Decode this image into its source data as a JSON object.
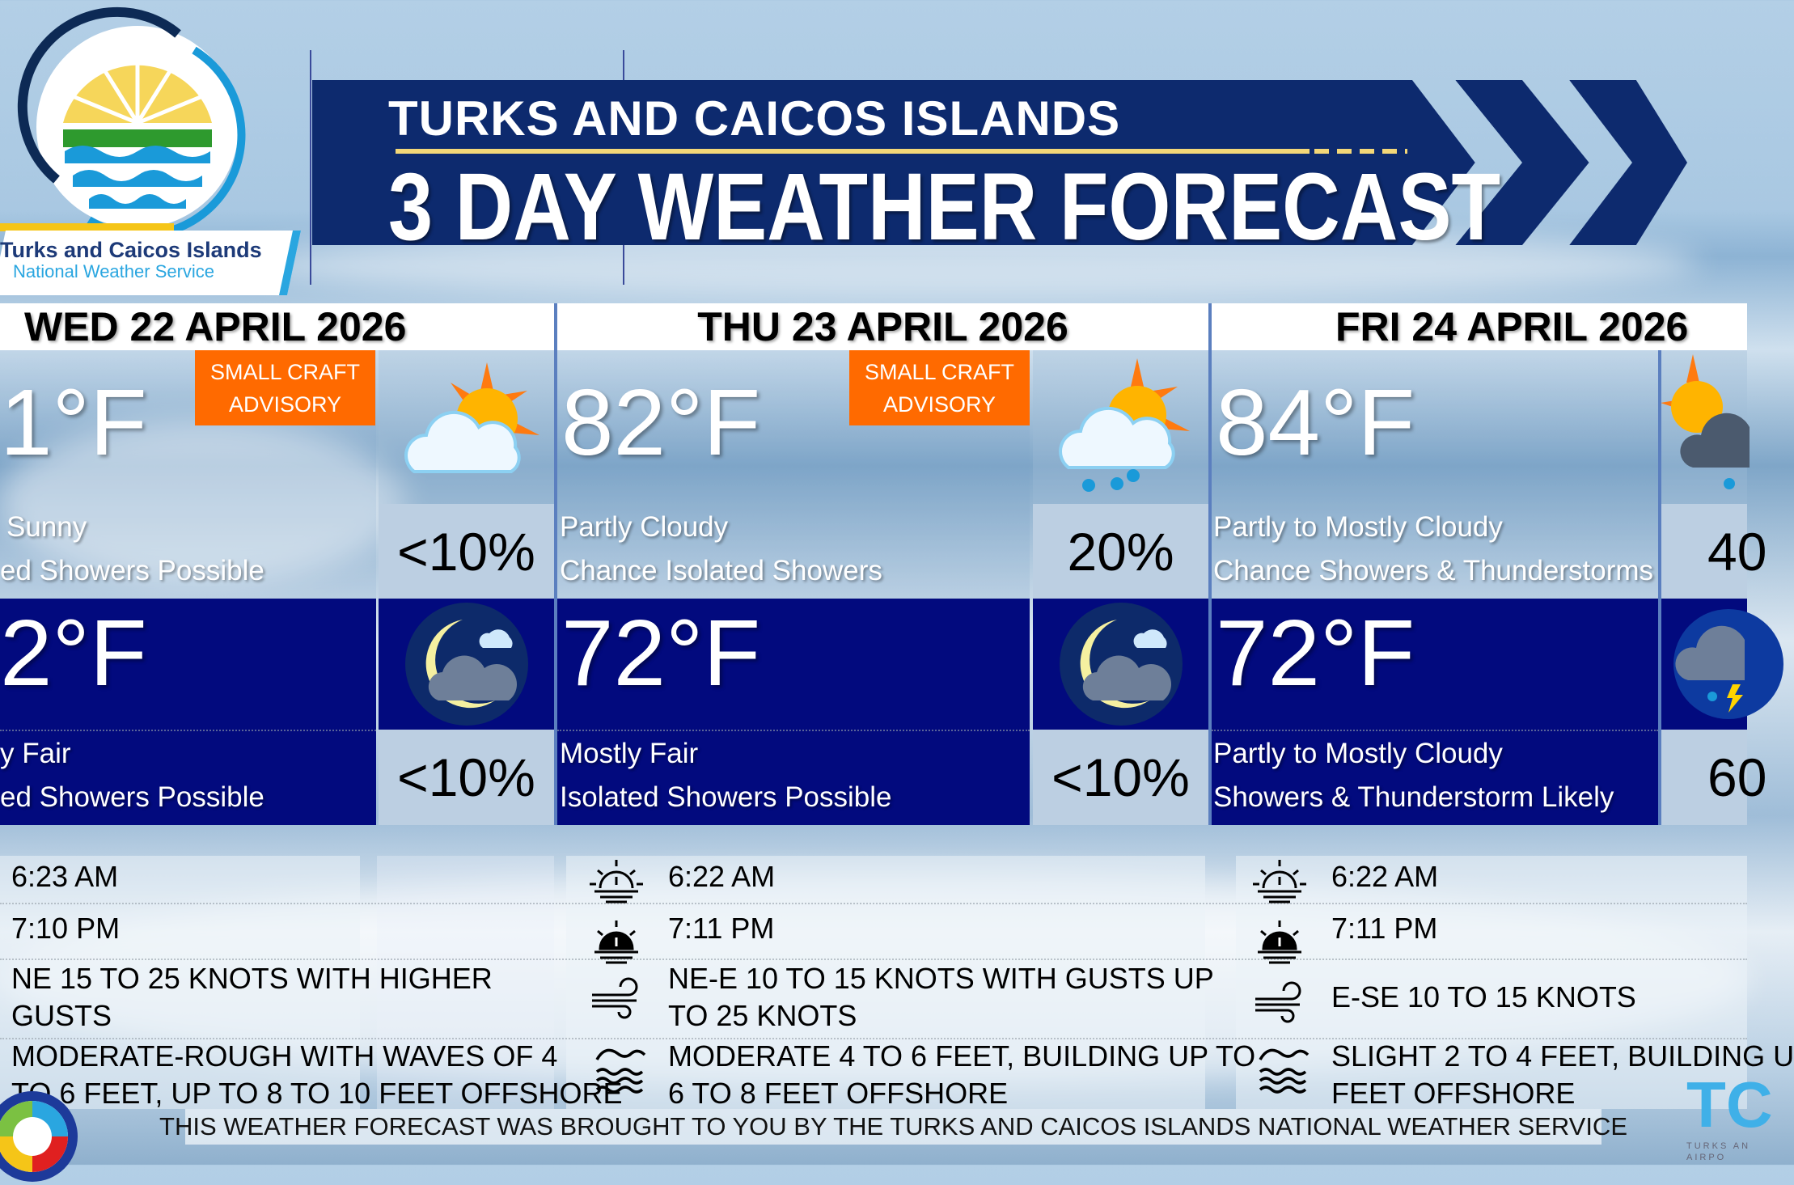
{
  "banner": {
    "line1": "TURKS AND CAICOS ISLANDS",
    "line2": "3 DAY WEATHER FORECAST"
  },
  "logo": {
    "org_name": "Turks and Caicos Islands",
    "org_sub": "National Weather Service"
  },
  "colors": {
    "banner": "#0d2a6e",
    "night": "#020a7e",
    "advisory": "#ff6a00",
    "pop_box": "#bccfe2",
    "accent_line": "#f3d778"
  },
  "days": [
    {
      "date": "WED 22 APRIL 2026",
      "advisory": [
        "SMALL CRAFT",
        "ADVISORY"
      ],
      "day_temp": "1°F",
      "day_icon": "sun-behind-cloud-icon",
      "day_desc1": "Sunny",
      "day_desc2": "ed Showers Possible",
      "day_pop": "<10%",
      "night_temp": "2°F",
      "night_icon": "moon-cloud-icon",
      "night_desc1": "y Fair",
      "night_desc2": "ed Showers Possible",
      "night_pop": "<10%",
      "sunrise": "6:23 AM",
      "sunset": "7:10 PM",
      "wind": [
        "NE 15 TO 25 KNOTS WITH HIGHER",
        "GUSTS"
      ],
      "seas": [
        "MODERATE-ROUGH WITH WAVES OF 4",
        "TO 6 FEET, UP TO 8 TO 10 FEET OFFSHORE"
      ]
    },
    {
      "date": "THU 23 APRIL 2026",
      "advisory": [
        "SMALL CRAFT",
        "ADVISORY"
      ],
      "day_temp": "82°F",
      "day_icon": "sun-cloud-rain-icon",
      "day_desc1": "Partly Cloudy",
      "day_desc2": "Chance Isolated Showers",
      "day_pop": "20%",
      "night_temp": "72°F",
      "night_icon": "moon-cloud-icon",
      "night_desc1": "Mostly Fair",
      "night_desc2": "Isolated Showers Possible",
      "night_pop": "<10%",
      "sunrise": "6:22 AM",
      "sunset": "7:11 PM",
      "wind": [
        "NE-E 10 TO 15 KNOTS WITH GUSTS UP",
        "TO 25 KNOTS"
      ],
      "seas": [
        "MODERATE 4 TO 6 FEET, BUILDING UP TO",
        "6 TO 8 FEET OFFSHORE"
      ]
    },
    {
      "date": "FRI 24 APRIL 2026",
      "day_temp": "84°F",
      "day_icon": "sun-thunderstorm-icon",
      "day_desc1": "Partly to Mostly Cloudy",
      "day_desc2": "Chance Showers & Thunderstorms",
      "day_pop": "40",
      "night_temp": "72°F",
      "night_icon": "night-thunderstorm-icon",
      "night_desc1": "Partly to Mostly Cloudy",
      "night_desc2": "Showers & Thunderstorm Likely",
      "night_pop": "60",
      "sunrise": "6:22 AM",
      "sunset": "7:11 PM",
      "wind": [
        "E-SE 10 TO 15 KNOTS"
      ],
      "seas": [
        "SLIGHT 2 TO 4 FEET, BUILDING U",
        "FEET OFFSHORE"
      ]
    }
  ],
  "footer": "THIS WEATHER FORECAST WAS BROUGHT TO YOU BY THE TURKS AND CAICOS ISLANDS NATIONAL WEATHER SERVICE",
  "corner_logo": {
    "text": "TC",
    "sub": "TURKS AN AIRPO"
  }
}
